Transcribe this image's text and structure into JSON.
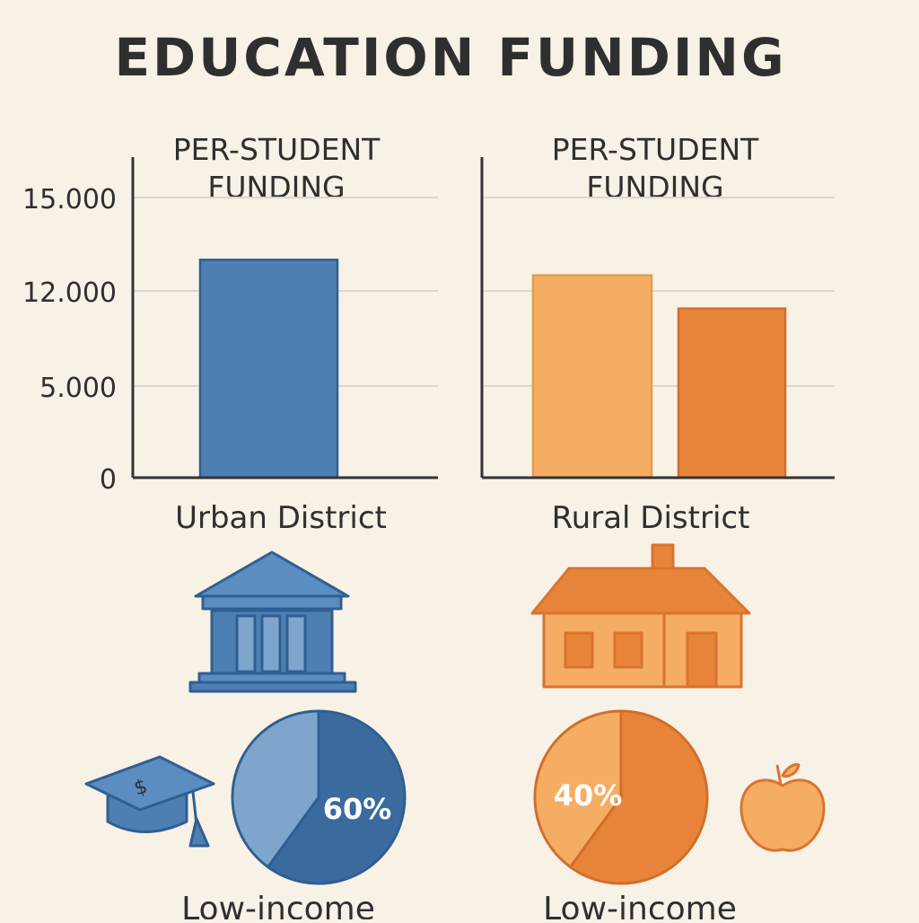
{
  "title": "EDUCATION FUNDING",
  "colors": {
    "background": "#f8f1e5",
    "text": "#2f2f2f",
    "axis": "#333333",
    "grid": "#dcd6cc",
    "urban_blue": "#4d7fb3",
    "urban_blue_light": "#7ea6cc",
    "urban_blue_dark": "#3a6a9e",
    "rural_orange_light": "#f4ad62",
    "rural_orange": "#e8843a",
    "rural_orange_dark": "#d87430"
  },
  "chart_data": [
    {
      "type": "bar",
      "title": "PER-STUDENT FUNDING",
      "xlabel": "Urban District",
      "ylabel": "",
      "y_ticks": [
        {
          "value": 0,
          "label": "0"
        },
        {
          "value": 5000,
          "label": "5.000"
        },
        {
          "value": 12000,
          "label": "12.000"
        },
        {
          "value": 15000,
          "label": "15.000"
        }
      ],
      "ylim": [
        0,
        15000
      ],
      "grid": true,
      "values": [
        13000
      ],
      "colors": [
        "#4d7fb3"
      ]
    },
    {
      "type": "bar",
      "title": "PER-STUDENT FUNDING",
      "xlabel": "Rural District",
      "ylabel": "",
      "ylim": [
        0,
        15000
      ],
      "grid": true,
      "values": [
        12500,
        10700
      ],
      "colors": [
        "#f4ad62",
        "#e8843a"
      ]
    },
    {
      "type": "pie",
      "label": "Low-income",
      "slices": [
        {
          "label": "60%",
          "value": 60,
          "color": "#3a6a9e"
        },
        {
          "label": "",
          "value": 40,
          "color": "#7ea6cc"
        }
      ]
    },
    {
      "type": "pie",
      "label": "Low-income",
      "slices": [
        {
          "label": "40%",
          "value": 40,
          "color": "#f4ad62"
        },
        {
          "label": "",
          "value": 60,
          "color": "#e8843a"
        }
      ]
    }
  ],
  "icons": {
    "urban": [
      "bank-building-icon",
      "graduation-cap-icon"
    ],
    "rural": [
      "house-icon",
      "apple-icon"
    ]
  }
}
